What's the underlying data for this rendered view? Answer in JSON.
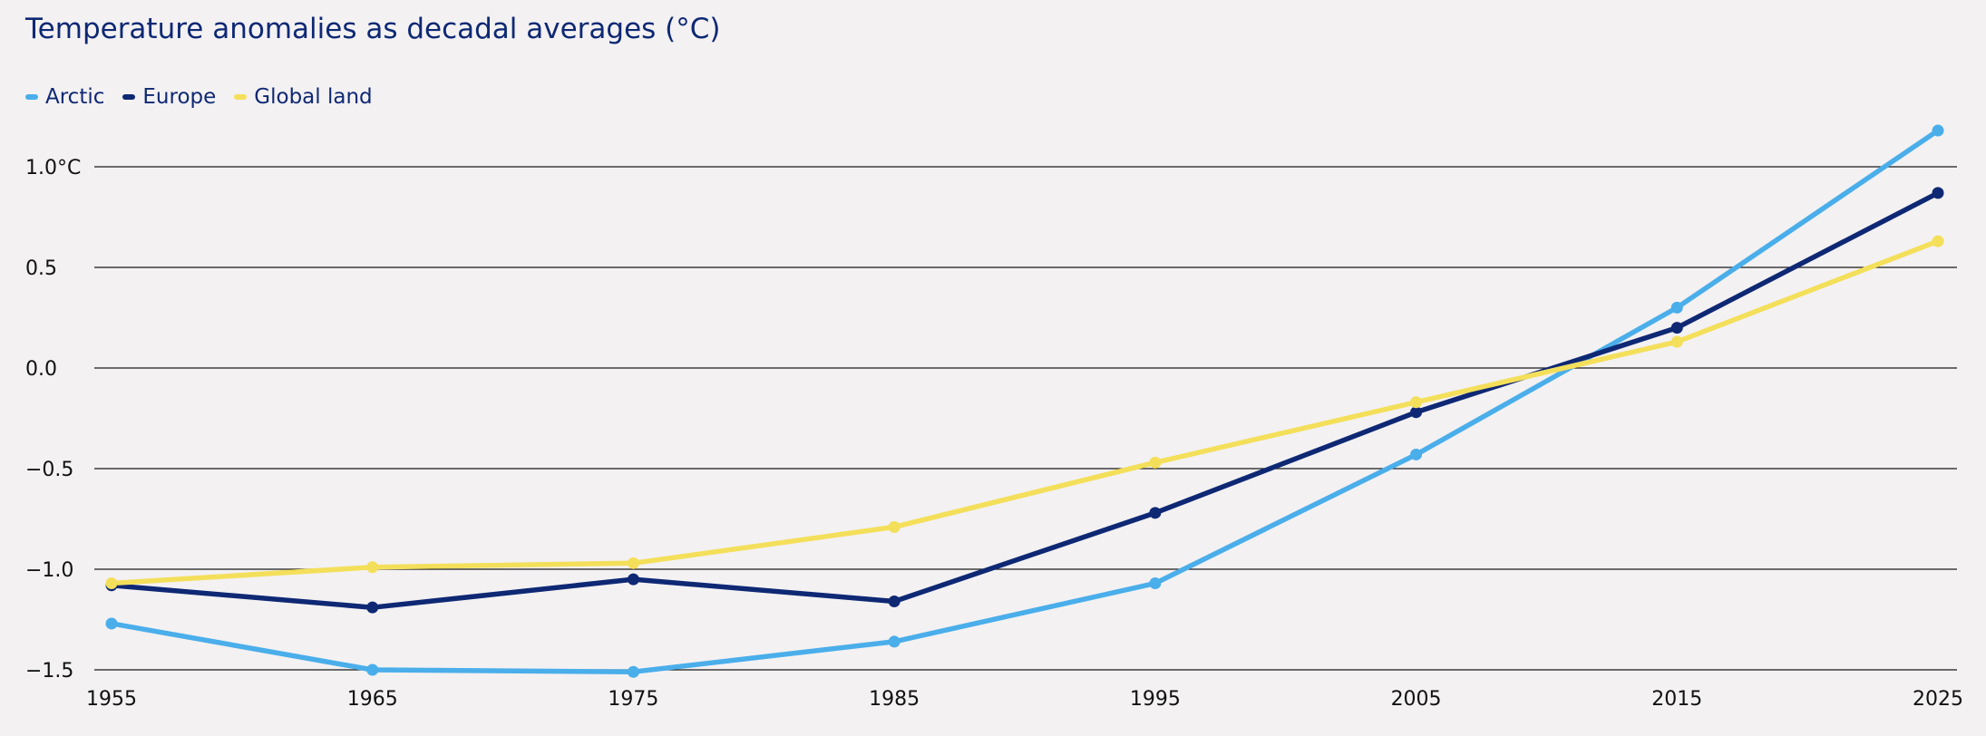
{
  "chart_data": {
    "type": "line",
    "title": "Temperature anomalies as decadal averages (°C)",
    "xlabel": "",
    "ylabel": "",
    "x": [
      1955,
      1965,
      1975,
      1985,
      1995,
      2005,
      2015,
      2025
    ],
    "x_tick_labels": [
      "1955",
      "1965",
      "1975",
      "1985",
      "1995",
      "2005",
      "2015",
      "2025"
    ],
    "y_ticks": [
      1.0,
      0.5,
      0.0,
      -0.5,
      -1.0,
      -1.5
    ],
    "y_tick_labels": [
      "1.0°C",
      "0.5",
      "0.0",
      "−0.5",
      "−1.0",
      "−1.5"
    ],
    "xlim": [
      1955,
      2025
    ],
    "ylim": [
      -1.5,
      1.0
    ],
    "grid": "horizontal",
    "legend_position": "top-left",
    "series": [
      {
        "name": "Arctic",
        "color": "#4aaeea",
        "values": [
          -1.27,
          -1.5,
          -1.51,
          -1.36,
          -1.07,
          -0.43,
          0.3,
          1.18
        ]
      },
      {
        "name": "Europe",
        "color": "#0e2874",
        "values": [
          -1.08,
          -1.19,
          -1.05,
          -1.16,
          -0.72,
          -0.22,
          0.2,
          0.87
        ]
      },
      {
        "name": "Global land",
        "color": "#f4df5a",
        "values": [
          -1.07,
          -0.99,
          -0.97,
          -0.79,
          -0.47,
          -0.17,
          0.13,
          0.63
        ]
      }
    ]
  }
}
